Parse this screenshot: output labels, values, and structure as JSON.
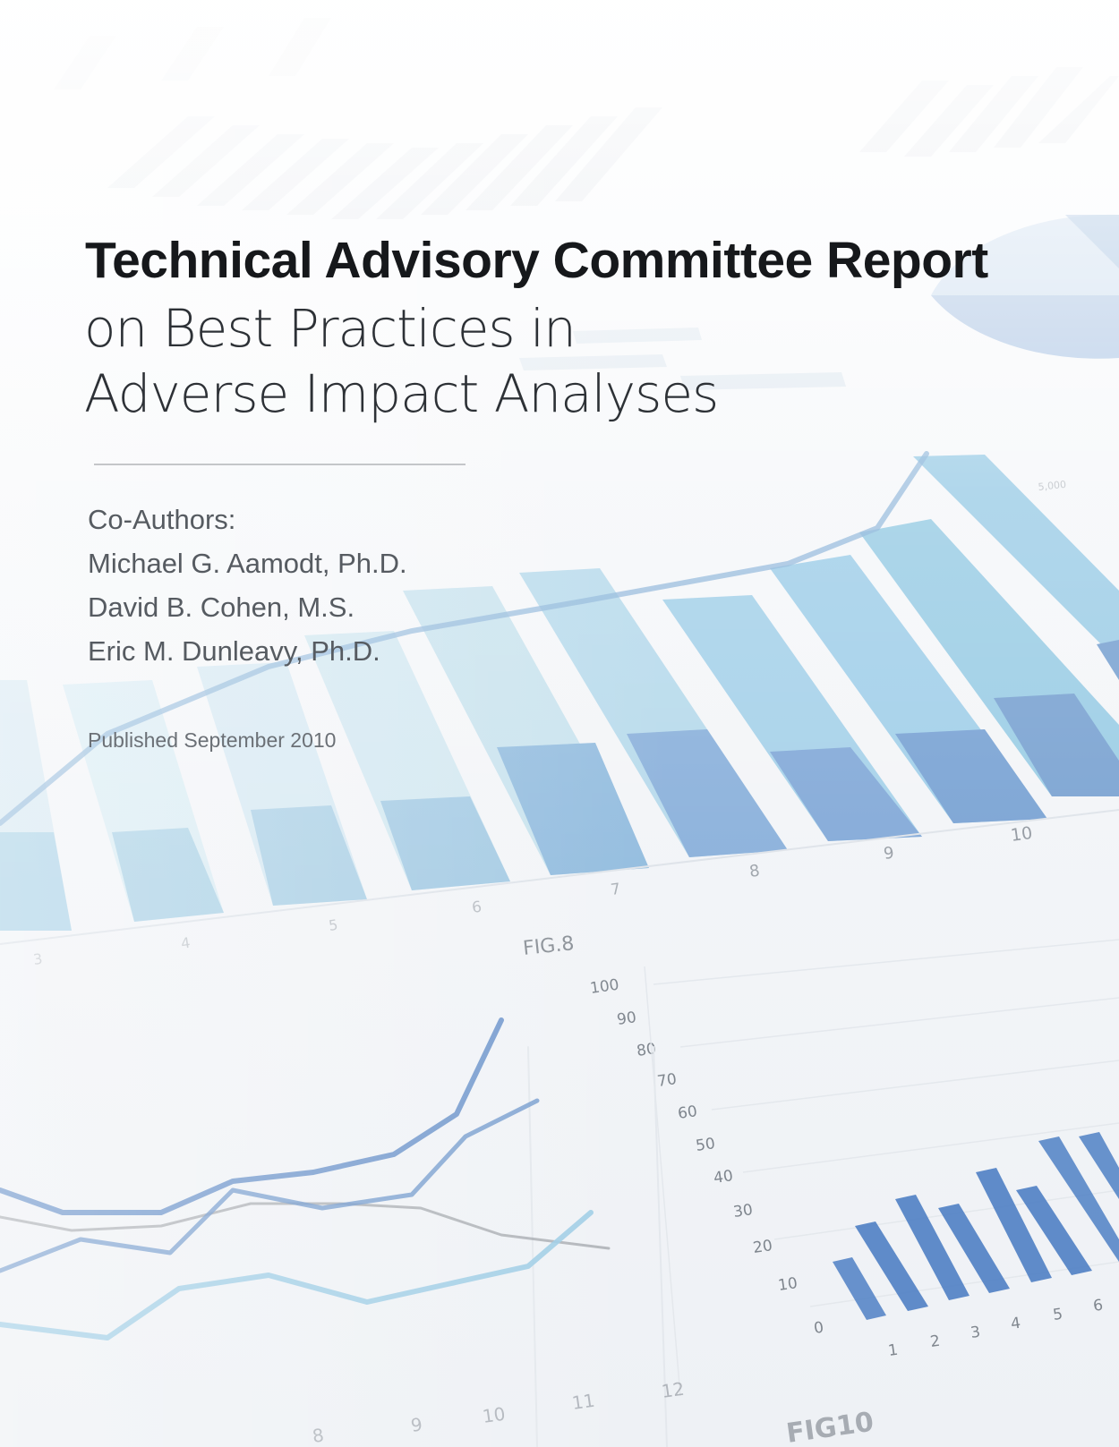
{
  "cover": {
    "title_bold": "Technical Advisory Committee Report",
    "title_line2": "on Best Practices in",
    "title_line3": "Adverse Impact Analyses",
    "coauthors_label": "Co-Authors:",
    "authors": [
      "Michael G. Aamodt, Ph.D.",
      "David B. Cohen, M.S.",
      "Eric M. Dunleavy, Ph.D."
    ],
    "published": "Published September 2010"
  },
  "background_image": {
    "fig8_label": "FIG.8",
    "fig8_tick_labels": [
      "3",
      "4",
      "5",
      "6",
      "7",
      "8",
      "9",
      "10"
    ],
    "fig8_corner_label": "5,000",
    "axis_tick_labels": [
      "0",
      "10",
      "20",
      "30",
      "40",
      "50",
      "60",
      "70",
      "80",
      "90",
      "100"
    ],
    "small_bar_tick_labels": [
      "1",
      "2",
      "3",
      "4",
      "5",
      "6"
    ],
    "line_chart_tick_labels": [
      "8",
      "9",
      "10",
      "11",
      "12"
    ],
    "fig10_label": "FIG10",
    "colors": {
      "light_blue": "#9fcfe6",
      "pale_blue": "#c9e3ef",
      "mid_blue": "#7fa6d3",
      "deep_blue": "#4f80c4",
      "gray_line": "#9a9ea4"
    }
  }
}
